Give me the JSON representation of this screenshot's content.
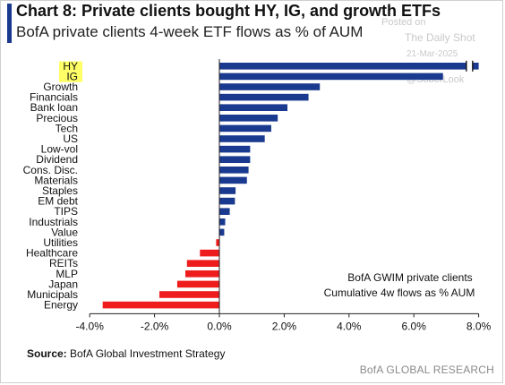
{
  "header": {
    "title": "Chart 8: Private clients bought HY, IG, and growth ETFs",
    "subtitle": "BofA private clients 4-week ETF flows as % of AUM"
  },
  "watermark": {
    "posted": "Posted on",
    "source": "The Daily Shot",
    "date": "21-Mar-2025",
    "handle": "@SoberLook"
  },
  "footer": {
    "source_label": "Source:",
    "source_text": "BofA Global Investment Strategy",
    "brand": "BofA GLOBAL RESEARCH"
  },
  "colors": {
    "positive": "#1a3a8f",
    "negative": "#ee1c1c",
    "highlight": "#ffff66",
    "axis": "#222222"
  },
  "chart_data": {
    "type": "bar",
    "orientation": "horizontal",
    "title": "Chart 8: Private clients bought HY, IG, and growth ETFs",
    "subtitle": "BofA private clients 4-week ETF flows as % of AUM",
    "xlabel": "",
    "ylabel": "",
    "xlim": [
      -4.0,
      8.0
    ],
    "x_ticks": [
      "-4.0%",
      "-2.0%",
      "0.0%",
      "2.0%",
      "4.0%",
      "6.0%",
      "8.0%"
    ],
    "x_tick_values": [
      -4,
      -2,
      0,
      2,
      4,
      6,
      8
    ],
    "grid": false,
    "annotation": [
      "BofA GWIM private clients",
      "Cumulative 4w flows as % AUM"
    ],
    "axis_break": "HY bar truncated at axis break",
    "highlighted_categories": [
      "HY",
      "IG"
    ],
    "categories": [
      "HY",
      "IG",
      "Growth",
      "Financials",
      "Bank loan",
      "Precious",
      "Tech",
      "US",
      "Low-vol",
      "Dividend",
      "Cons. Disc.",
      "Materials",
      "Staples",
      "EM debt",
      "TIPS",
      "Industrials",
      "Value",
      "Utilities",
      "Healthcare",
      "REITs",
      "MLP",
      "Japan",
      "Municipals",
      "Energy"
    ],
    "values": [
      8.2,
      6.9,
      3.1,
      2.75,
      2.1,
      1.8,
      1.6,
      1.4,
      0.95,
      0.95,
      0.9,
      0.85,
      0.5,
      0.48,
      0.32,
      0.18,
      0.15,
      -0.1,
      -0.6,
      -1.0,
      -1.05,
      -1.3,
      -1.85,
      -3.6
    ]
  }
}
